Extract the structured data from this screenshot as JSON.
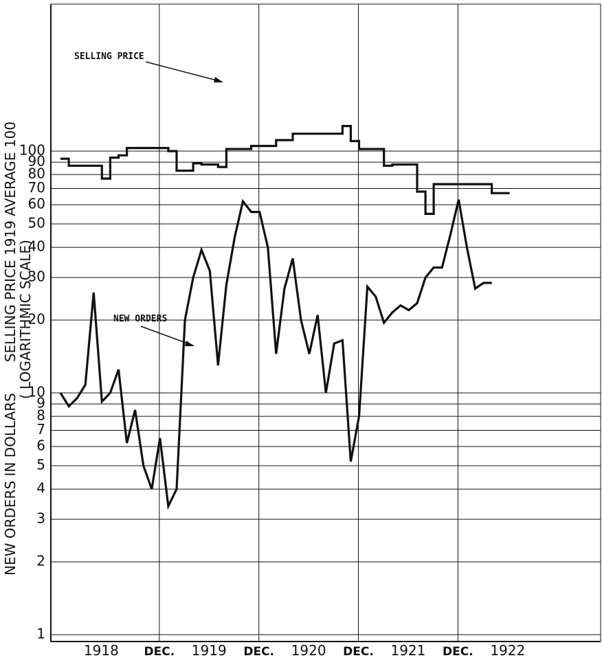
{
  "chart_data": {
    "type": "line",
    "ylabel_line1": "SELLING PRICE 1919 AVERAGE 100",
    "ylabel_line2": "NEW ORDERS IN DOLLARS",
    "ylabel_line3": "( LOGARITHMIC SCALE)",
    "y_scale": "log",
    "ylim": [
      1,
      200
    ],
    "y_ticks": [
      1,
      2,
      3,
      4,
      5,
      6,
      7,
      8,
      9,
      10,
      20,
      30,
      40,
      50,
      60,
      70,
      80,
      90,
      100
    ],
    "y_tick_labels": [
      "1",
      "2",
      "3",
      "4",
      "5",
      "6",
      "7",
      "8",
      "9",
      "10",
      "20",
      "30",
      "40",
      "50",
      "60",
      "70",
      "80",
      "90",
      "100"
    ],
    "x_tick_labels": [
      "1918",
      "DEC.",
      "1919",
      "DEC.",
      "1920",
      "DEC.",
      "1921",
      "DEC.",
      "1922"
    ],
    "x_gridline_months": [
      12,
      24,
      36,
      48
    ],
    "x_range_months": [
      0,
      58
    ],
    "grid": true,
    "series": [
      {
        "name": "SELLING PRICE",
        "style": "step",
        "x": [
          0,
          1,
          4,
          5,
          6,
          7,
          8,
          13,
          14,
          16,
          17,
          19,
          20,
          23,
          26,
          28,
          31,
          34,
          35,
          36,
          39,
          40,
          42,
          43,
          44,
          45,
          51,
          52,
          53
        ],
        "y": [
          93,
          87,
          87,
          77,
          94,
          96,
          103,
          100,
          83,
          89,
          88,
          86,
          102,
          105,
          111,
          118,
          118,
          127,
          110,
          102,
          87,
          88,
          88,
          68,
          55,
          73,
          73,
          67,
          67
        ]
      },
      {
        "name": "NEW ORDERS",
        "style": "line",
        "x": [
          0,
          1,
          2,
          3,
          4,
          5,
          6,
          7,
          8,
          9,
          10,
          11,
          12,
          13,
          14,
          15,
          16,
          17,
          18,
          19,
          20,
          21,
          22,
          23,
          24,
          25,
          26,
          27,
          28,
          29,
          30,
          31,
          32,
          33,
          34,
          35,
          36,
          37,
          38,
          39,
          40,
          41,
          42,
          43,
          44,
          45,
          46,
          47,
          48,
          49,
          50,
          51,
          52
        ],
        "y": [
          10,
          8.8,
          9.5,
          10.8,
          26,
          9.2,
          10,
          12.5,
          6.2,
          8.5,
          5,
          4,
          6.5,
          3.4,
          4,
          20,
          30,
          39,
          32,
          13,
          28,
          44,
          62,
          56,
          56,
          40,
          14.5,
          27,
          36,
          20,
          14.5,
          21,
          10,
          16,
          16.5,
          5.2,
          8,
          27.5,
          25,
          19.5,
          21.5,
          23,
          22,
          23.5,
          30,
          33,
          33,
          45,
          63,
          40,
          27,
          28.5,
          28.5
        ]
      }
    ],
    "annotations": [
      {
        "text": "SELLING PRICE",
        "points_to": "SELLING PRICE"
      },
      {
        "text": "NEW ORDERS",
        "points_to": "NEW ORDERS"
      }
    ]
  }
}
